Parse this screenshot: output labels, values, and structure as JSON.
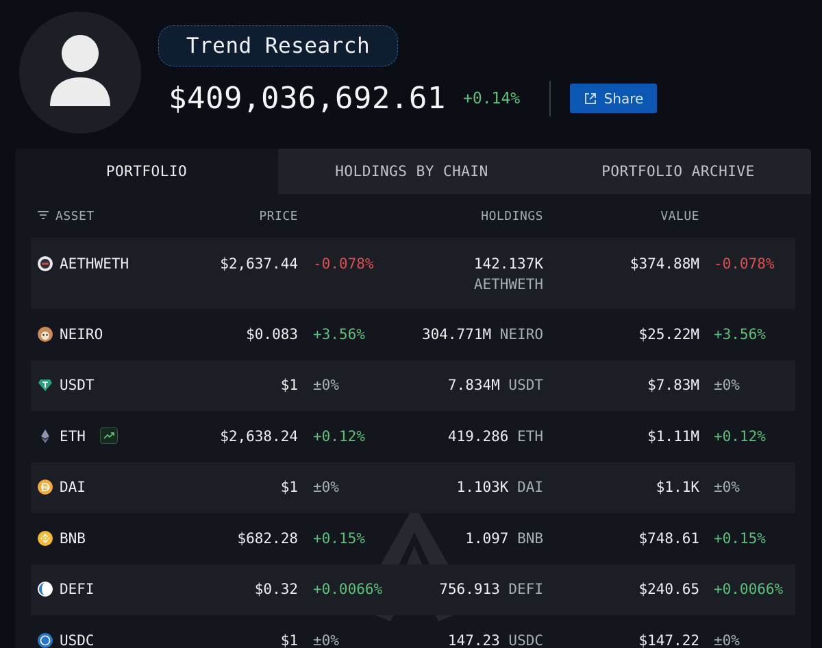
{
  "profile": {
    "name": "Trend Research",
    "total_value": "$409,036,692.61",
    "total_change": "+0.14%",
    "share_label": "Share"
  },
  "tabs": [
    {
      "label": "PORTFOLIO",
      "active": true
    },
    {
      "label": "HOLDINGS BY CHAIN",
      "active": false
    },
    {
      "label": "PORTFOLIO ARCHIVE",
      "active": false
    }
  ],
  "columns": {
    "asset": "ASSET",
    "price": "PRICE",
    "holdings": "HOLDINGS",
    "value": "VALUE"
  },
  "rows": [
    {
      "asset": "AETHWETH",
      "price": "$2,637.44",
      "price_change": "-0.078%",
      "holdings_amount": "142.137K",
      "holdings_unit": "AETHWETH",
      "value": "$374.88M",
      "value_change": "-0.078%",
      "icon": "aethweth-token-icon",
      "icon_color": "#e8e8ea"
    },
    {
      "asset": "NEIRO",
      "price": "$0.083",
      "price_change": "+3.56%",
      "holdings_amount": "304.771M",
      "holdings_unit": "NEIRO",
      "value": "$25.22M",
      "value_change": "+3.56%",
      "icon": "neiro-token-icon",
      "icon_color": "#c98a54"
    },
    {
      "asset": "USDT",
      "price": "$1",
      "price_change": "±0%",
      "holdings_amount": "7.834M",
      "holdings_unit": "USDT",
      "value": "$7.83M",
      "value_change": "±0%",
      "icon": "usdt-token-icon",
      "icon_color": "#26a17b"
    },
    {
      "asset": "ETH",
      "price": "$2,638.24",
      "price_change": "+0.12%",
      "holdings_amount": "419.286",
      "holdings_unit": "ETH",
      "value": "$1.11M",
      "value_change": "+0.12%",
      "icon": "eth-token-icon",
      "icon_color": "#8f95b2"
    },
    {
      "asset": "DAI",
      "price": "$1",
      "price_change": "±0%",
      "holdings_amount": "1.103K",
      "holdings_unit": "DAI",
      "value": "$1.1K",
      "value_change": "±0%",
      "icon": "dai-token-icon",
      "icon_color": "#f5ac37"
    },
    {
      "asset": "BNB",
      "price": "$682.28",
      "price_change": "+0.15%",
      "holdings_amount": "1.097",
      "holdings_unit": "BNB",
      "value": "$748.61",
      "value_change": "+0.15%",
      "icon": "bnb-token-icon",
      "icon_color": "#f3ba2f"
    },
    {
      "asset": "DEFI",
      "price": "$0.32",
      "price_change": "+0.0066%",
      "holdings_amount": "756.913",
      "holdings_unit": "DEFI",
      "value": "$240.65",
      "value_change": "+0.0066%",
      "icon": "defi-token-icon",
      "icon_color": "#2a77d6"
    },
    {
      "asset": "USDC",
      "price": "$1",
      "price_change": "±0%",
      "holdings_amount": "147.23",
      "holdings_unit": "USDC",
      "value": "$147.22",
      "value_change": "±0%",
      "icon": "usdc-token-icon",
      "icon_color": "#2775ca"
    }
  ],
  "colors": {
    "positive": "#5cc07a",
    "negative": "#dc4f4f",
    "accent": "#0a58b3"
  }
}
